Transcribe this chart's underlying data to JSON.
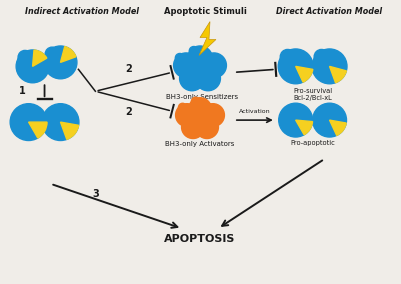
{
  "bg_color": "#f0ede8",
  "blue": "#1a8fd1",
  "yellow": "#f5d020",
  "orange": "#f07820",
  "dark": "#1a1a1a",
  "title_indirect": "Indirect Activation Model",
  "title_direct": "Direct Activation Model",
  "label_stimuli": "Apoptotic Stimuli",
  "label_sensitizers": "BH3-only Sensitizers",
  "label_activators": "BH3-only Activators",
  "label_prosurvival": "Pro-survival\nBcl-2/Bcl-xL",
  "label_proapoptotic": "Pro-apoptotic",
  "label_apoptosis": "APOPTOSIS",
  "label_activation": "Activation",
  "figw": 4.01,
  "figh": 2.84,
  "dpi": 100
}
